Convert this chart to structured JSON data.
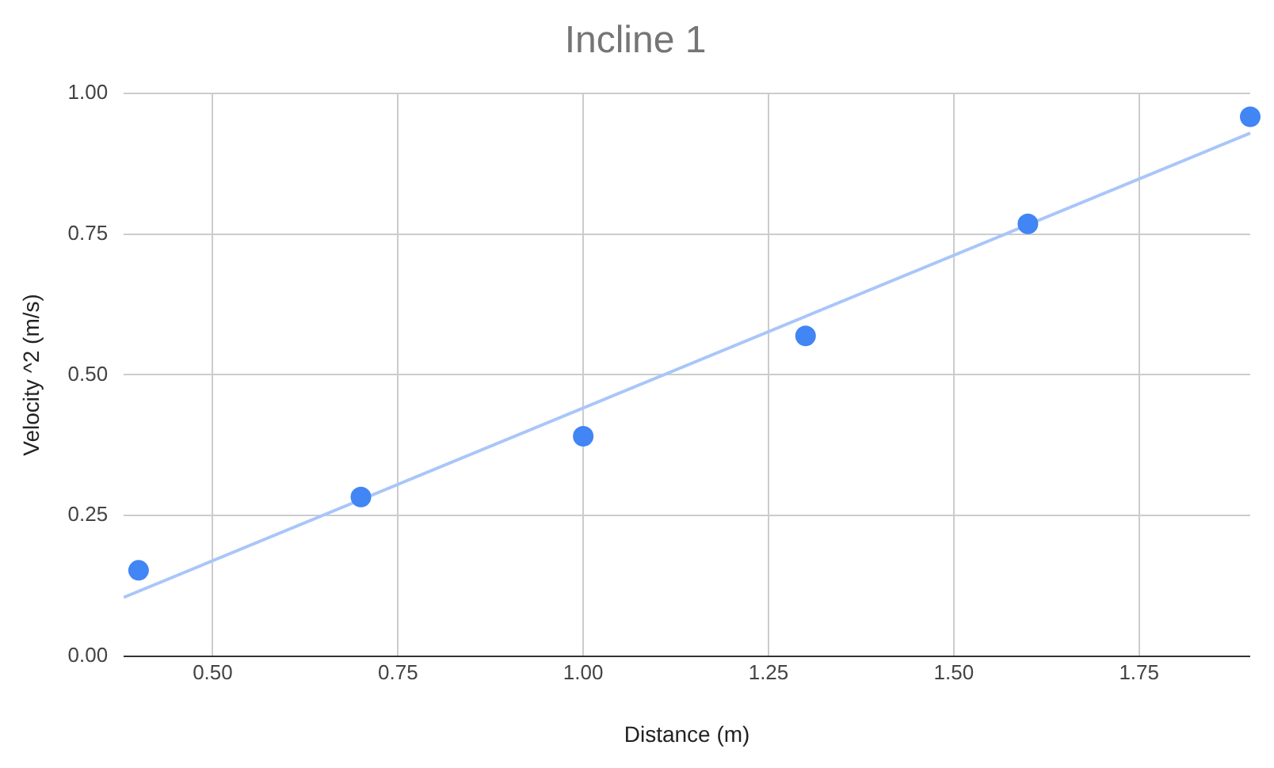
{
  "chart_data": {
    "type": "scatter",
    "title": "Incline 1",
    "xlabel": "Distance (m)",
    "ylabel": "Velocity ^2 (m/s)",
    "x": [
      0.4,
      0.7,
      1.0,
      1.3,
      1.6,
      1.9
    ],
    "series": [
      {
        "color": "#4285f4",
        "marker": "circle",
        "values": [
          0.153,
          0.283,
          0.391,
          0.569,
          0.768,
          0.958
        ]
      },
      {
        "type": "line",
        "marker": "none",
        "color": "#a9c6f8",
        "x": [
          0.38,
          1.9
        ],
        "values": [
          0.105,
          0.929
        ]
      }
    ],
    "xlim": [
      0.38,
      1.9
    ],
    "xticks": [
      {
        "value": 0.5,
        "label": "0.50"
      },
      {
        "value": 0.75,
        "label": "0.75"
      },
      {
        "value": 1,
        "label": "1.00"
      },
      {
        "value": 1.25,
        "label": "1.25"
      },
      {
        "value": 1.5,
        "label": "1.50"
      },
      {
        "value": 1.75,
        "label": "1.75"
      }
    ],
    "ylim": [
      0,
      1
    ],
    "yticks": [
      {
        "value": 0,
        "label": "0.00"
      },
      {
        "value": 0.25,
        "label": "0.25"
      },
      {
        "value": 0.5,
        "label": "0.50"
      },
      {
        "value": 0.75,
        "label": "0.75"
      },
      {
        "value": 1,
        "label": "1.00"
      }
    ],
    "grid": true,
    "legend": false
  }
}
